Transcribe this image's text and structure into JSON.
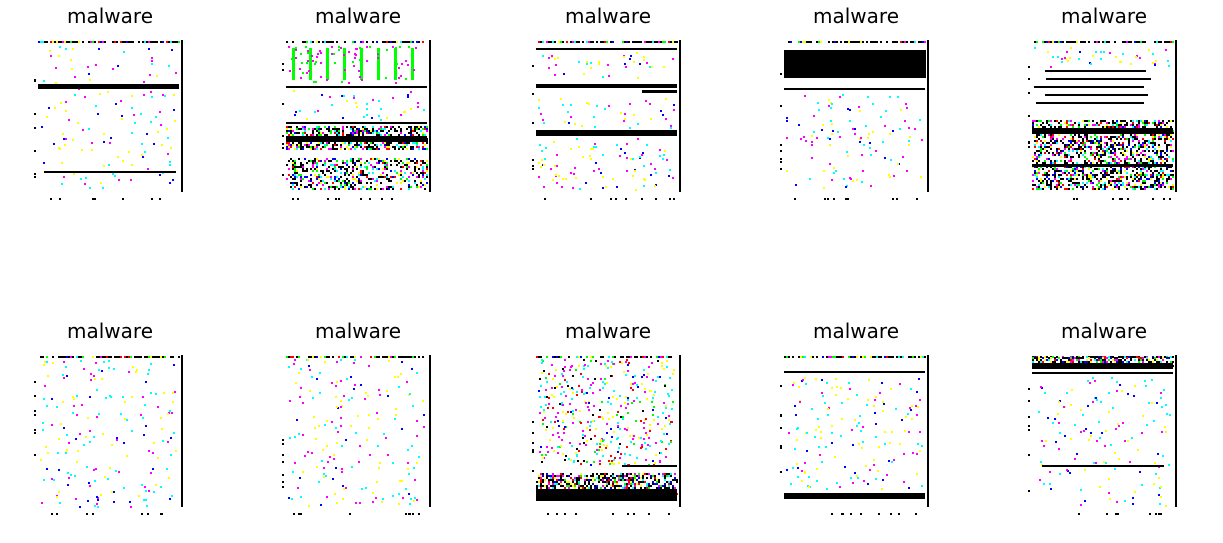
{
  "figure": {
    "images": [
      {
        "label": "malware",
        "pattern": "band-mid"
      },
      {
        "label": "malware",
        "pattern": "dense-top-lower-band"
      },
      {
        "label": "malware",
        "pattern": "multi-lines"
      },
      {
        "label": "malware",
        "pattern": "solid-top-block"
      },
      {
        "label": "malware",
        "pattern": "busy-middle"
      },
      {
        "label": "malware",
        "pattern": "sparse-noise"
      },
      {
        "label": "malware",
        "pattern": "sparse-noise"
      },
      {
        "label": "malware",
        "pattern": "dense-bottom-band"
      },
      {
        "label": "malware",
        "pattern": "top-line-bottom-band"
      },
      {
        "label": "malware",
        "pattern": "top-band-lower-line"
      }
    ],
    "palette": [
      "#ff00ff",
      "#00ffff",
      "#ffff00",
      "#0000ff",
      "#00ff00",
      "#ff0000",
      "#000000"
    ]
  }
}
